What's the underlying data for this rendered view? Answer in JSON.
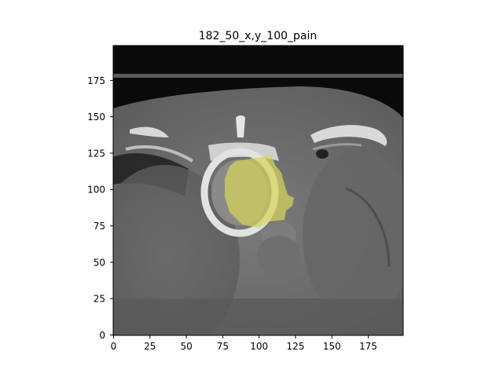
{
  "figure": {
    "title": "182_50_x,y_100_pain",
    "x_ticks": [
      "0",
      "25",
      "50",
      "75",
      "100",
      "125",
      "150",
      "175"
    ],
    "y_ticks": [
      "0",
      "25",
      "50",
      "75",
      "100",
      "125",
      "150",
      "175"
    ],
    "xlim": [
      0,
      199
    ],
    "ylim": [
      0,
      199
    ],
    "overlay_color": "#d7d45a",
    "scan_background_color": "#6e6e6e"
  }
}
